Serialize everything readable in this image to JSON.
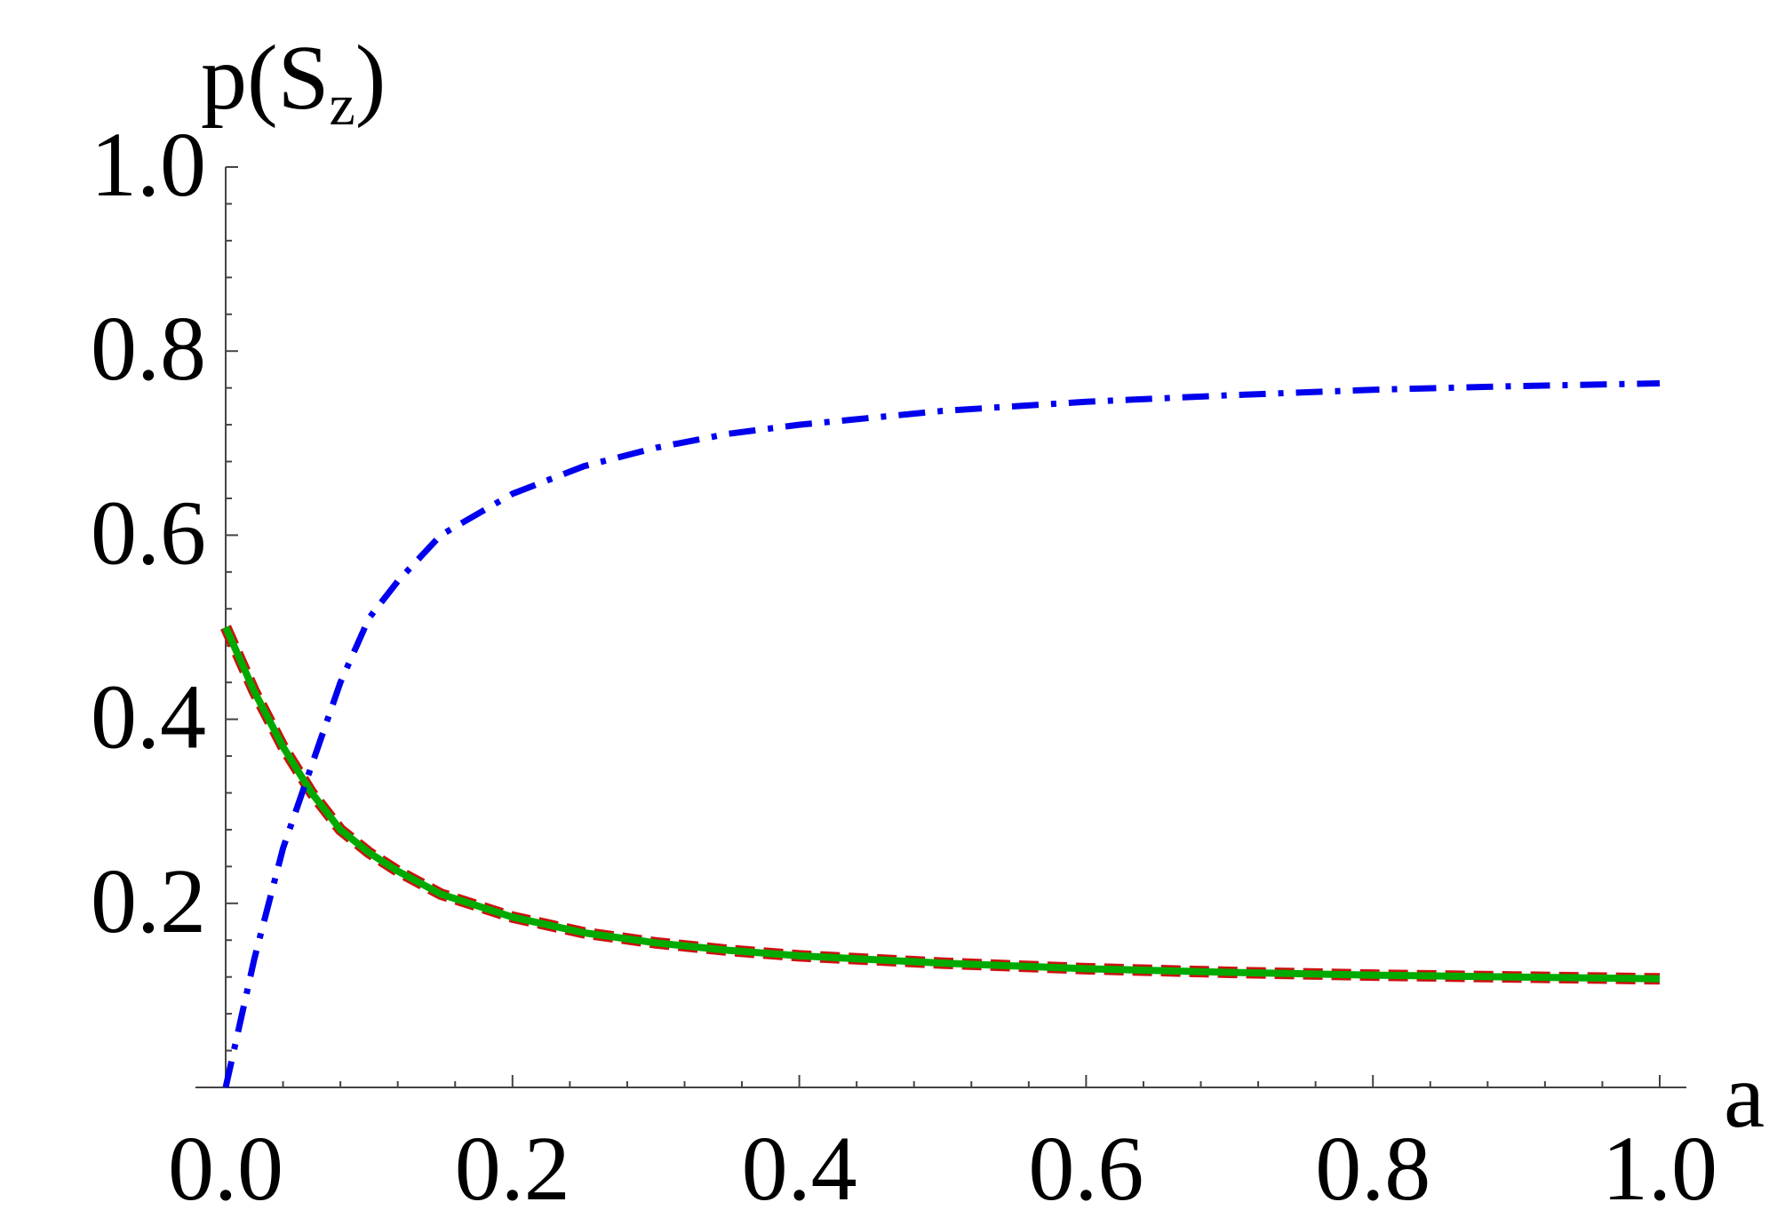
{
  "chart_data": {
    "type": "line",
    "xlabel": "a",
    "ylabel": "p(S",
    "ylabel_sub": "z",
    "ylabel_close": ")",
    "xlim": [
      0,
      1
    ],
    "ylim": [
      0,
      1
    ],
    "x_ticks": [
      0.0,
      0.2,
      0.4,
      0.6,
      0.8,
      1.0
    ],
    "x_tick_labels": [
      "0.0",
      "0.2",
      "0.4",
      "0.6",
      "0.8",
      "1.0"
    ],
    "y_ticks": [
      0.2,
      0.4,
      0.6,
      0.8,
      1.0
    ],
    "y_tick_labels": [
      "0.2",
      "0.4",
      "0.6",
      "0.8",
      "1.0"
    ],
    "grid": false,
    "series": [
      {
        "color": "#0000ee",
        "style": "dash-dot",
        "x": [
          0.0,
          0.02,
          0.04,
          0.06,
          0.08,
          0.1,
          0.12,
          0.15,
          0.2,
          0.25,
          0.3,
          0.35,
          0.4,
          0.5,
          0.6,
          0.7,
          0.8,
          0.9,
          1.0
        ],
        "y": [
          0.0,
          0.14,
          0.26,
          0.35,
          0.44,
          0.51,
          0.55,
          0.6,
          0.645,
          0.675,
          0.695,
          0.71,
          0.72,
          0.735,
          0.745,
          0.752,
          0.758,
          0.762,
          0.765
        ]
      },
      {
        "color": "#cc1111",
        "style": "dashed",
        "x": [
          0.0,
          0.02,
          0.04,
          0.06,
          0.08,
          0.1,
          0.12,
          0.15,
          0.2,
          0.25,
          0.3,
          0.35,
          0.4,
          0.5,
          0.6,
          0.7,
          0.8,
          0.9,
          1.0
        ],
        "y": [
          0.5,
          0.43,
          0.37,
          0.32,
          0.28,
          0.255,
          0.235,
          0.21,
          0.185,
          0.168,
          0.157,
          0.149,
          0.143,
          0.135,
          0.129,
          0.125,
          0.122,
          0.12,
          0.118
        ]
      },
      {
        "color": "#00aa00",
        "style": "solid",
        "x": [
          0.0,
          0.02,
          0.04,
          0.06,
          0.08,
          0.1,
          0.12,
          0.15,
          0.2,
          0.25,
          0.3,
          0.35,
          0.4,
          0.5,
          0.6,
          0.7,
          0.8,
          0.9,
          1.0
        ],
        "y": [
          0.5,
          0.43,
          0.37,
          0.32,
          0.28,
          0.255,
          0.235,
          0.21,
          0.185,
          0.168,
          0.157,
          0.149,
          0.143,
          0.135,
          0.129,
          0.125,
          0.122,
          0.12,
          0.118
        ]
      }
    ]
  }
}
